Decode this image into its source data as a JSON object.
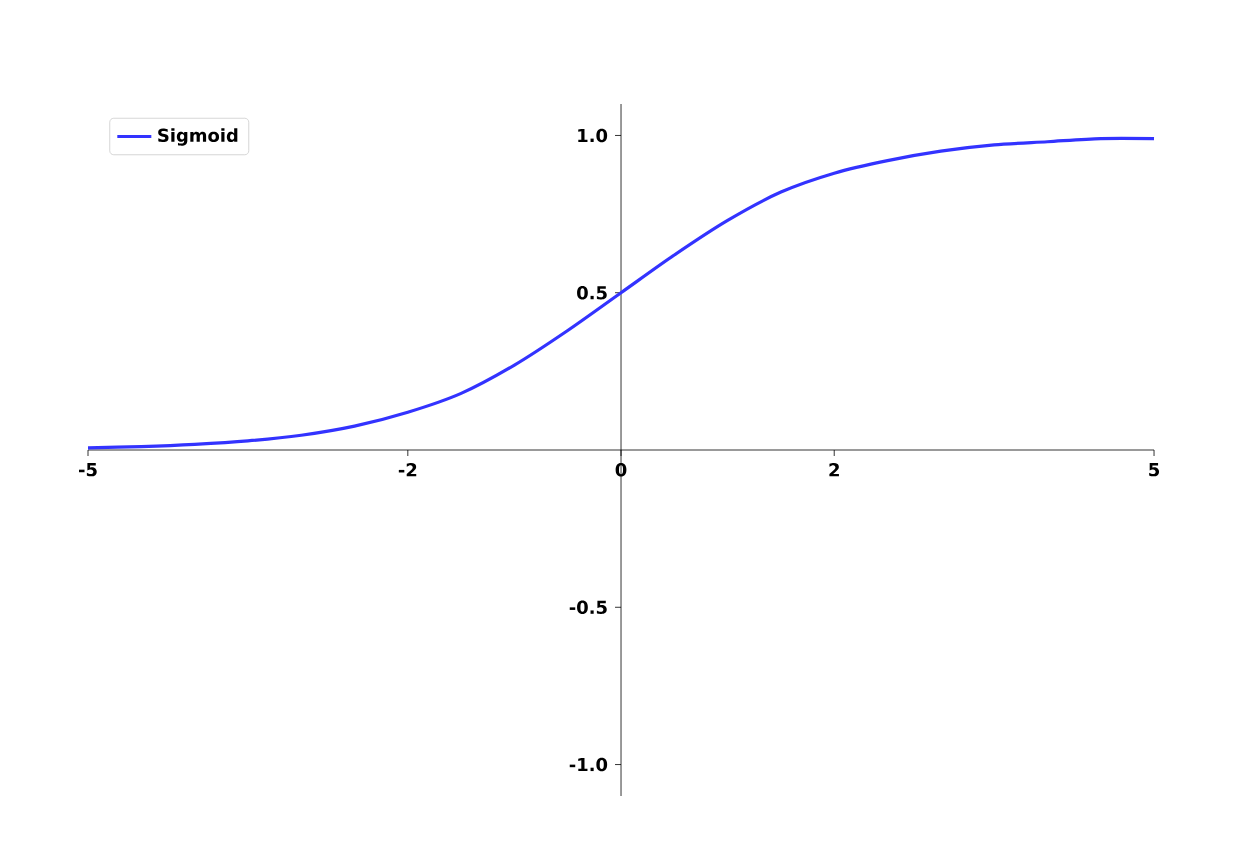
{
  "chart_data": {
    "type": "line",
    "x": [
      -5,
      -4.5,
      -4,
      -3.5,
      -3,
      -2.5,
      -2,
      -1.5,
      -1,
      -0.5,
      0,
      0.5,
      1,
      1.5,
      2,
      2.5,
      3,
      3.5,
      4,
      4.5,
      5
    ],
    "series": [
      {
        "name": "Sigmoid",
        "color": "#3333ff",
        "values": [
          0.007,
          0.011,
          0.018,
          0.029,
          0.047,
          0.076,
          0.12,
          0.18,
          0.27,
          0.38,
          0.5,
          0.62,
          0.73,
          0.82,
          0.88,
          0.92,
          0.95,
          0.97,
          0.98,
          0.99,
          0.99
        ]
      }
    ],
    "xlim": [
      -5,
      5
    ],
    "ylim": [
      -1.1,
      1.1
    ],
    "xticks": [
      -5,
      -2,
      0,
      2,
      5
    ],
    "yticks": [
      {
        "value": -1,
        "label": "-1.0"
      },
      {
        "value": -0.5,
        "label": "-0.5"
      },
      {
        "value": 0.5,
        "label": "0.5"
      },
      {
        "value": 1,
        "label": "1.0"
      }
    ],
    "legend": "top left",
    "grid": false,
    "marker": "none",
    "line_style": "solid"
  }
}
